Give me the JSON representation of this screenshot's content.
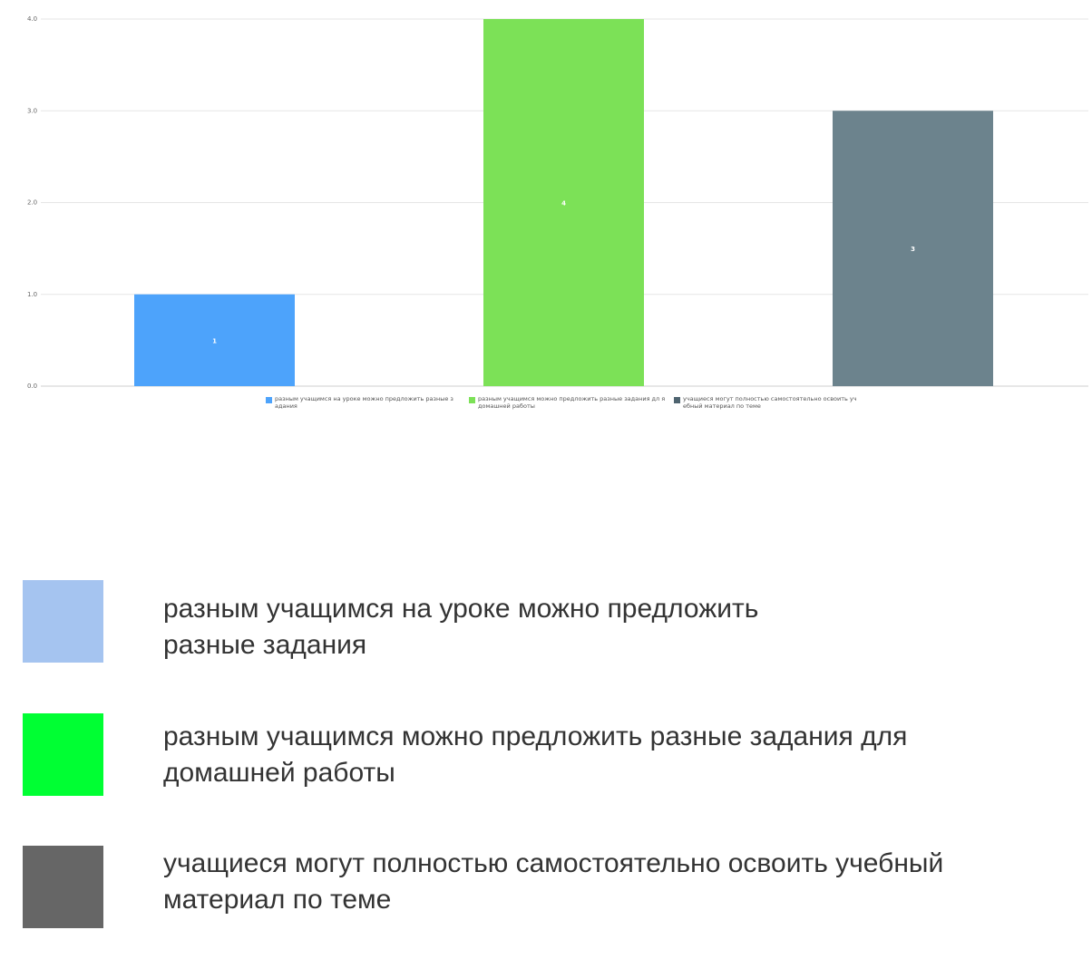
{
  "chart_data": {
    "type": "bar",
    "categories": [
      "разным учащимся на уроке можно предложить разные задания",
      "разным учащимся можно предложить разные задания для домашней работы",
      "учащиеся могут полностью самостоятельно освоить учебный материал по теме"
    ],
    "values": [
      1,
      4,
      3
    ],
    "data_labels": [
      "1",
      "4",
      "3"
    ],
    "colors": [
      "#4DA3FB",
      "#7CE157",
      "#6C838D"
    ],
    "yticks": [
      "0.0",
      "1.0",
      "2.0",
      "3.0",
      "4.0"
    ],
    "ylim": [
      0,
      4
    ],
    "grid": true,
    "legend_position": "bottom"
  },
  "small_legend": [
    {
      "text": "разным учащимся на уроке можно предложить разные з адания",
      "color": "#4DA3FB"
    },
    {
      "text": "разным учащимся можно предложить разные задания дл я домашней работы",
      "color": "#7CE157"
    },
    {
      "text": "учащиеся могут полностью самостоятельно освоить уч ебный материал по теме",
      "color": "#4F6470"
    }
  ],
  "big_legend": [
    {
      "line1": "разным учащимся на уроке можно предложить",
      "line2": "разные задания",
      "color": "#A5C4F0"
    },
    {
      "line1": "разным учащимся можно предложить разные задания для",
      "line2": "домашней работы",
      "color": "#00FF33"
    },
    {
      "line1": "учащиеся могут полностью самостоятельно освоить учебный",
      "line2": "материал по теме",
      "color": "#666666"
    }
  ]
}
